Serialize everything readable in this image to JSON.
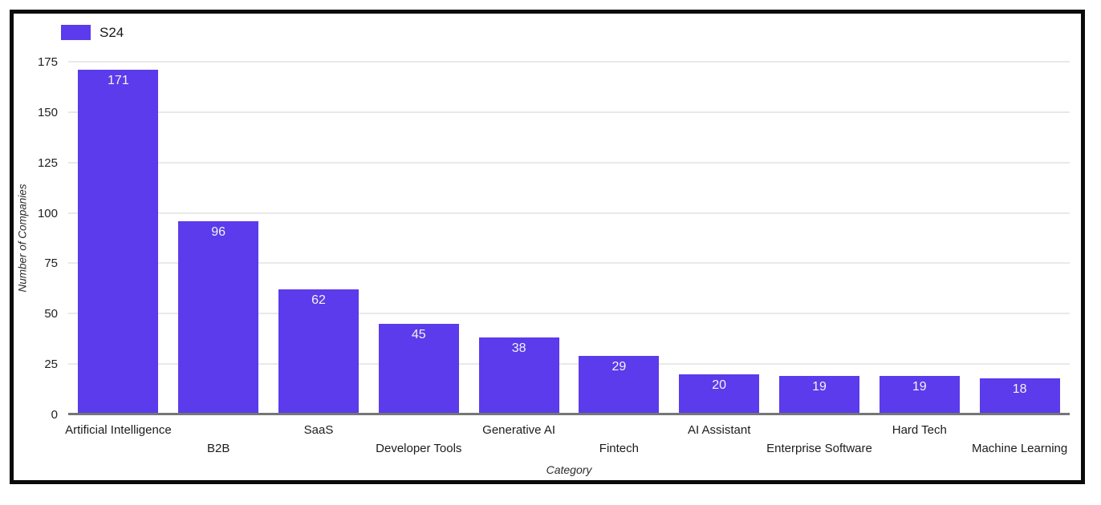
{
  "chart_data": {
    "type": "bar",
    "title": "",
    "xlabel": "Category",
    "ylabel": "Number of Companies",
    "categories": [
      "Artificial Intelligence",
      "B2B",
      "SaaS",
      "Developer Tools",
      "Generative AI",
      "Fintech",
      "AI Assistant",
      "Enterprise Software",
      "Hard Tech",
      "Machine Learning"
    ],
    "series": [
      {
        "name": "S24",
        "values": [
          171,
          96,
          62,
          45,
          38,
          29,
          20,
          19,
          19,
          18
        ]
      }
    ],
    "ylim": [
      0,
      175
    ],
    "yticks": [
      0,
      25,
      50,
      75,
      100,
      125,
      150,
      175
    ],
    "legend_position": "top-left",
    "grid": "horizontal",
    "label_stagger": "alternate-two-rows",
    "colors": {
      "bar": "#5b3beb",
      "value_label": "#f4f4f4",
      "gridline": "#e9e9e9",
      "baseline": "#757575",
      "frame_border": "#0b0b0b"
    }
  }
}
